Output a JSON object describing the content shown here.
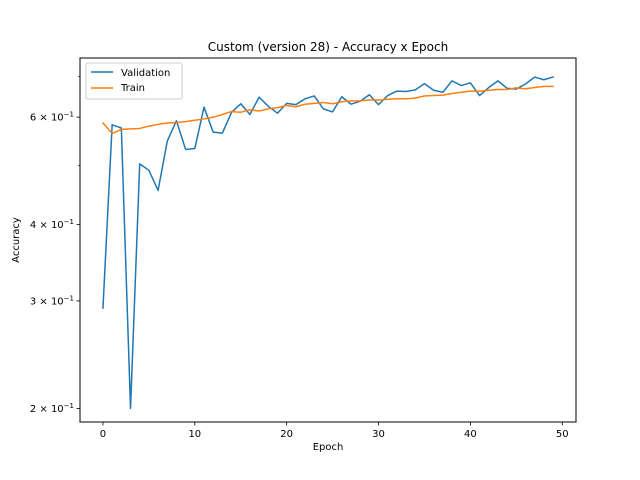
{
  "chart_data": {
    "type": "line",
    "title": "Custom (version 28) - Accuracy x Epoch",
    "xlabel": "Epoch",
    "ylabel": "Accuracy",
    "yscale": "log",
    "xlim": [
      -2.5,
      51.5
    ],
    "ylim": [
      0.19,
      0.75
    ],
    "grid": false,
    "legend_position": "upper left",
    "x_ticks": [
      0,
      10,
      20,
      30,
      40,
      50
    ],
    "y_major_ticks": [
      {
        "value": 0.2,
        "label_base": "2 × 10",
        "label_exp": "−1"
      },
      {
        "value": 0.3,
        "label_base": "3 × 10",
        "label_exp": "−1"
      },
      {
        "value": 0.4,
        "label_base": "4 × 10",
        "label_exp": "−1"
      },
      {
        "value": 0.6,
        "label_base": "6 × 10",
        "label_exp": "−1"
      }
    ],
    "y_minor_ticks": [
      0.5,
      0.7
    ],
    "x": [
      0,
      1,
      2,
      3,
      4,
      5,
      6,
      7,
      8,
      9,
      10,
      11,
      12,
      13,
      14,
      15,
      16,
      17,
      18,
      19,
      20,
      21,
      22,
      23,
      24,
      25,
      26,
      27,
      28,
      29,
      30,
      31,
      32,
      33,
      34,
      35,
      36,
      37,
      38,
      39,
      40,
      41,
      42,
      43,
      44,
      45,
      46,
      47,
      48,
      49
    ],
    "series": [
      {
        "name": "Validation",
        "color": "#1f77b4",
        "values": [
          0.292,
          0.583,
          0.576,
          0.2,
          0.503,
          0.491,
          0.455,
          0.548,
          0.592,
          0.531,
          0.533,
          0.623,
          0.567,
          0.565,
          0.611,
          0.631,
          0.606,
          0.647,
          0.625,
          0.609,
          0.632,
          0.629,
          0.643,
          0.65,
          0.619,
          0.612,
          0.648,
          0.63,
          0.637,
          0.653,
          0.629,
          0.651,
          0.662,
          0.661,
          0.665,
          0.681,
          0.664,
          0.659,
          0.688,
          0.676,
          0.683,
          0.651,
          0.671,
          0.688,
          0.669,
          0.667,
          0.68,
          0.698,
          0.691,
          0.698
        ]
      },
      {
        "name": "Train",
        "color": "#ff7f0e",
        "values": [
          0.587,
          0.564,
          0.573,
          0.574,
          0.575,
          0.58,
          0.584,
          0.587,
          0.588,
          0.59,
          0.593,
          0.596,
          0.6,
          0.606,
          0.613,
          0.611,
          0.617,
          0.614,
          0.619,
          0.622,
          0.627,
          0.624,
          0.63,
          0.632,
          0.634,
          0.631,
          0.636,
          0.638,
          0.638,
          0.64,
          0.64,
          0.642,
          0.643,
          0.643,
          0.645,
          0.65,
          0.651,
          0.652,
          0.656,
          0.659,
          0.662,
          0.662,
          0.664,
          0.666,
          0.666,
          0.67,
          0.668,
          0.671,
          0.674,
          0.674
        ]
      }
    ]
  }
}
